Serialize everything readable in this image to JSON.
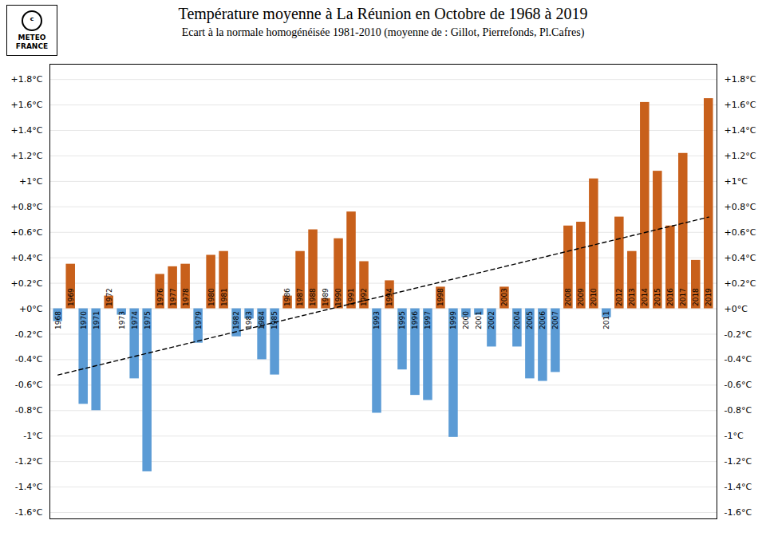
{
  "chart_data": {
    "type": "bar",
    "title": "Température moyenne à La Réunion en Octobre de 1968 à 2019",
    "subtitle": "Ecart à la normale homogénéisée 1981-2010 (moyenne de : Gillot, Pierrefonds, Pl.Cafres)",
    "annotations": [
      "ᶜ",
      "METEO",
      "FRANCE"
    ],
    "categories": [
      1968,
      1969,
      1970,
      1971,
      1972,
      1973,
      1974,
      1975,
      1976,
      1977,
      1978,
      1979,
      1980,
      1981,
      1982,
      1983,
      1984,
      1985,
      1986,
      1987,
      1988,
      1989,
      1990,
      1991,
      1992,
      1993,
      1994,
      1995,
      1996,
      1997,
      1998,
      1999,
      2000,
      2001,
      2002,
      2003,
      2004,
      2005,
      2006,
      2007,
      2008,
      2009,
      2010,
      2011,
      2012,
      2013,
      2014,
      2015,
      2016,
      2017,
      2018,
      2019
    ],
    "values": [
      -0.1,
      0.35,
      -0.75,
      -0.8,
      0.1,
      -0.05,
      -0.55,
      -1.28,
      0.27,
      0.33,
      0.35,
      -0.27,
      0.42,
      0.45,
      -0.22,
      -0.08,
      -0.4,
      -0.52,
      0.1,
      0.45,
      0.62,
      0.08,
      0.55,
      0.76,
      0.37,
      -0.82,
      0.22,
      -0.48,
      -0.68,
      -0.72,
      0.17,
      -1.01,
      -0.07,
      -0.05,
      -0.3,
      0.17,
      -0.3,
      -0.55,
      -0.57,
      -0.5,
      0.65,
      0.68,
      1.02,
      -0.07,
      0.72,
      0.45,
      1.62,
      1.08,
      0.65,
      1.22,
      0.38,
      1.65
    ],
    "colors": [
      "#5b9bd5",
      "#c8601b",
      "#5b9bd5",
      "#5b9bd5",
      "#c8601b",
      "#5b9bd5",
      "#5b9bd5",
      "#5b9bd5",
      "#c8601b",
      "#c8601b",
      "#c8601b",
      "#5b9bd5",
      "#c8601b",
      "#c8601b",
      "#5b9bd5",
      "#5b9bd5",
      "#5b9bd5",
      "#5b9bd5",
      "#c8601b",
      "#c8601b",
      "#c8601b",
      "#c8601b",
      "#c8601b",
      "#c8601b",
      "#c8601b",
      "#5b9bd5",
      "#c8601b",
      "#5b9bd5",
      "#5b9bd5",
      "#5b9bd5",
      "#c8601b",
      "#5b9bd5",
      "#5b9bd5",
      "#5b9bd5",
      "#5b9bd5",
      "#c8601b",
      "#5b9bd5",
      "#5b9bd5",
      "#5b9bd5",
      "#5b9bd5",
      "#c8601b",
      "#c8601b",
      "#c8601b",
      "#5b9bd5",
      "#c8601b",
      "#c8601b",
      "#c8601b",
      "#c8601b",
      "#c8601b",
      "#c8601b",
      "#c8601b",
      "#c8601b"
    ],
    "trend_line": {
      "x": [
        1968,
        2019
      ],
      "y": [
        -0.52,
        0.72
      ],
      "line_style": "dashed",
      "color": "#000000"
    },
    "ylim": [
      -1.65,
      1.92
    ],
    "yticks": [
      {
        "value": -1.6,
        "label": "-1.6°C"
      },
      {
        "value": -1.4,
        "label": "-1.4°C"
      },
      {
        "value": -1.2,
        "label": "-1.2°C"
      },
      {
        "value": -1.0,
        "label": "-1°C"
      },
      {
        "value": -0.8,
        "label": "-0.8°C"
      },
      {
        "value": -0.6,
        "label": "-0.6°C"
      },
      {
        "value": -0.4,
        "label": "-0.4°C"
      },
      {
        "value": -0.2,
        "label": "-0.2°C"
      },
      {
        "value": 0.0,
        "label": "+0°C"
      },
      {
        "value": 0.2,
        "label": "+0.2°C"
      },
      {
        "value": 0.4,
        "label": "+0.4°C"
      },
      {
        "value": 0.6,
        "label": "+0.6°C"
      },
      {
        "value": 0.8,
        "label": "+0.8°C"
      },
      {
        "value": 1.0,
        "label": "+1°C"
      },
      {
        "value": 1.2,
        "label": "+1.2°C"
      },
      {
        "value": 1.4,
        "label": "+1.4°C"
      },
      {
        "value": 1.6,
        "label": "+1.6°C"
      },
      {
        "value": 1.8,
        "label": "+1.8°C"
      }
    ],
    "grid": true,
    "tick_labels": "y"
  }
}
